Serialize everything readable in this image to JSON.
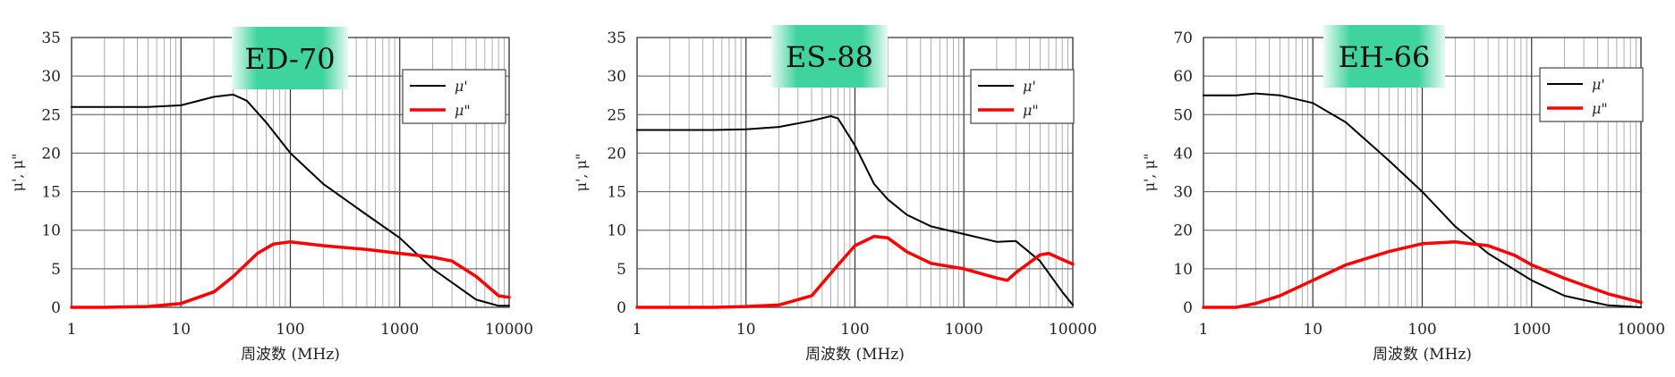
{
  "chart_data": [
    {
      "type": "line",
      "title": "ED-70",
      "xlabel": "周波数 (MHz)",
      "ylabel": "μ', μ\"",
      "x_scale": "log",
      "xlim": [
        1,
        10000
      ],
      "ylim": [
        0,
        35
      ],
      "x_ticks": [
        "1",
        "10",
        "100",
        "1000",
        "10000"
      ],
      "y_ticks": [
        "0",
        "5",
        "10",
        "15",
        "20",
        "25",
        "30",
        "35"
      ],
      "grid": true,
      "legend_position": "top-right",
      "series": [
        {
          "name": "μ'",
          "color": "#000000",
          "x": [
            1,
            2,
            5,
            10,
            20,
            30,
            40,
            60,
            100,
            200,
            500,
            1000,
            2000,
            5000,
            8000,
            10000
          ],
          "y": [
            26,
            26,
            26,
            26.2,
            27.3,
            27.6,
            26.8,
            24,
            20,
            16,
            12,
            9,
            5,
            1,
            0.2,
            0.2
          ]
        },
        {
          "name": "μ\"",
          "color": "#ff0000",
          "x": [
            1,
            2,
            5,
            10,
            20,
            30,
            50,
            70,
            100,
            200,
            500,
            1000,
            2000,
            3000,
            5000,
            8000,
            10000
          ],
          "y": [
            0,
            0,
            0.1,
            0.5,
            2,
            4,
            7,
            8.2,
            8.5,
            8,
            7.5,
            7,
            6.5,
            6,
            4,
            1.5,
            1.3
          ]
        }
      ]
    },
    {
      "type": "line",
      "title": "ES-88",
      "xlabel": "周波数 (MHz)",
      "ylabel": "μ', μ\"",
      "x_scale": "log",
      "xlim": [
        1,
        10000
      ],
      "ylim": [
        0,
        35
      ],
      "x_ticks": [
        "1",
        "10",
        "100",
        "1000",
        "10000"
      ],
      "y_ticks": [
        "0",
        "5",
        "10",
        "15",
        "20",
        "25",
        "30",
        "35"
      ],
      "grid": true,
      "legend_position": "top-right",
      "series": [
        {
          "name": "μ'",
          "color": "#000000",
          "x": [
            1,
            5,
            10,
            20,
            40,
            60,
            70,
            100,
            150,
            200,
            300,
            500,
            1000,
            2000,
            3000,
            5000,
            8000,
            10000
          ],
          "y": [
            23,
            23,
            23.1,
            23.4,
            24.2,
            24.8,
            24.5,
            21,
            16,
            14,
            12,
            10.5,
            9.5,
            8.5,
            8.6,
            6,
            2,
            0.3
          ]
        },
        {
          "name": "μ\"",
          "color": "#ff0000",
          "x": [
            1,
            5,
            10,
            20,
            40,
            70,
            100,
            150,
            200,
            300,
            500,
            1000,
            2000,
            2500,
            3000,
            5000,
            6000,
            8000,
            10000
          ],
          "y": [
            0,
            0,
            0.1,
            0.3,
            1.5,
            5.5,
            8,
            9.2,
            9,
            7.2,
            5.7,
            5,
            3.8,
            3.5,
            4.5,
            6.8,
            7,
            6.2,
            5.6
          ]
        }
      ]
    },
    {
      "type": "line",
      "title": "EH-66",
      "xlabel": "周波数 (MHz)",
      "ylabel": "μ', μ\"",
      "x_scale": "log",
      "xlim": [
        1,
        10000
      ],
      "ylim": [
        0,
        70
      ],
      "x_ticks": [
        "1",
        "10",
        "100",
        "1000",
        "10000"
      ],
      "y_ticks": [
        "0",
        "10",
        "20",
        "30",
        "40",
        "50",
        "60",
        "70"
      ],
      "grid": true,
      "legend_position": "top-right",
      "series": [
        {
          "name": "μ'",
          "color": "#000000",
          "x": [
            1,
            2,
            3,
            5,
            10,
            20,
            50,
            100,
            200,
            400,
            1000,
            2000,
            5000,
            10000
          ],
          "y": [
            55,
            55,
            55.5,
            55,
            53,
            48,
            38,
            30,
            21,
            14,
            7,
            3,
            0.5,
            0
          ]
        },
        {
          "name": "μ\"",
          "color": "#ff0000",
          "x": [
            1,
            2,
            3,
            5,
            10,
            20,
            50,
            100,
            200,
            400,
            700,
            1000,
            2000,
            5000,
            10000
          ],
          "y": [
            0,
            0,
            1,
            3,
            7,
            11,
            14.5,
            16.5,
            17,
            16,
            13.5,
            11,
            7.5,
            3.5,
            1.3
          ]
        }
      ]
    }
  ]
}
